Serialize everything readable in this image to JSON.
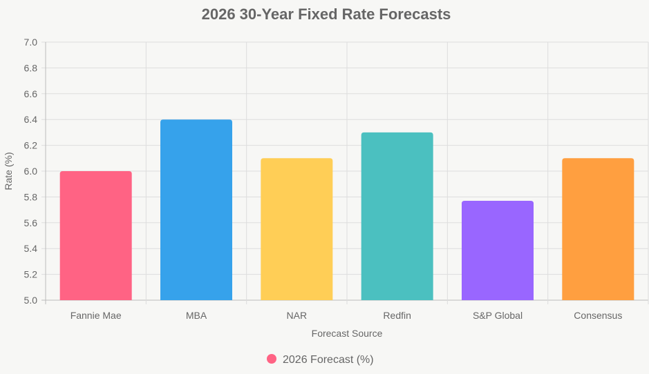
{
  "chart_data": {
    "type": "bar",
    "title": "2026 30-Year Fixed Rate Forecasts",
    "xlabel": "Forecast Source",
    "ylabel": "Rate (%)",
    "categories": [
      "Fannie Mae",
      "MBA",
      "NAR",
      "Redfin",
      "S&P Global",
      "Consensus"
    ],
    "series": [
      {
        "name": "2026 Forecast (%)",
        "values": [
          6.0,
          6.4,
          6.1,
          6.3,
          5.77,
          6.1
        ]
      }
    ],
    "colors": [
      "#ff6384",
      "#36a2eb",
      "#ffce56",
      "#4bc0c0",
      "#9966ff",
      "#ff9f40"
    ],
    "ylim": [
      5.0,
      7.0
    ],
    "yticks": [
      "5.0",
      "5.2",
      "5.4",
      "5.6",
      "5.8",
      "6.0",
      "6.2",
      "6.4",
      "6.6",
      "6.8",
      "7.0"
    ],
    "grid": true,
    "legend_position": "bottom"
  }
}
